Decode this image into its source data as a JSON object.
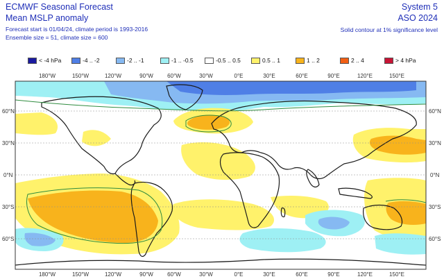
{
  "header": {
    "title": "ECMWF Seasonal Forecast",
    "subtitle": "Mean MSLP anomaly",
    "forecast_info": "Forecast start is 01/04/24, climate period is 1993-2016",
    "ensemble_info": "Ensemble size = 51, climate size = 600",
    "system": "System 5",
    "period": "ASO 2024",
    "significance_note": "Solid contour at 1% significance level"
  },
  "legend": {
    "items": [
      {
        "label": "< -4 hPa",
        "color": "#1a1aa0"
      },
      {
        "label": "-4 .. -2",
        "color": "#4f7fe6"
      },
      {
        "label": "-2 .. -1",
        "color": "#86b9f2"
      },
      {
        "label": "-1 .. -0.5",
        "color": "#9ef0f4"
      },
      {
        "label": "-0.5 .. 0.5",
        "color": "#ffffff"
      },
      {
        "label": "0.5 .. 1",
        "color": "#fff26b"
      },
      {
        "label": "1 .. 2",
        "color": "#f8b31c"
      },
      {
        "label": "2 .. 4",
        "color": "#f25f14"
      },
      {
        "label": "> 4 hPa",
        "color": "#c81435"
      }
    ]
  },
  "axes": {
    "lon_labels": [
      "180°W",
      "150°W",
      "120°W",
      "90°W",
      "60°W",
      "30°W",
      "0°E",
      "30°E",
      "60°E",
      "90°E",
      "120°E",
      "150°E"
    ],
    "lat_labels": [
      "60°N",
      "30°N",
      "0°N",
      "30°S",
      "60°S"
    ]
  },
  "map": {
    "ocean_color": "#ffffff",
    "coast_color": "#1a1a1a",
    "contour_color": "#2e8b3e"
  }
}
